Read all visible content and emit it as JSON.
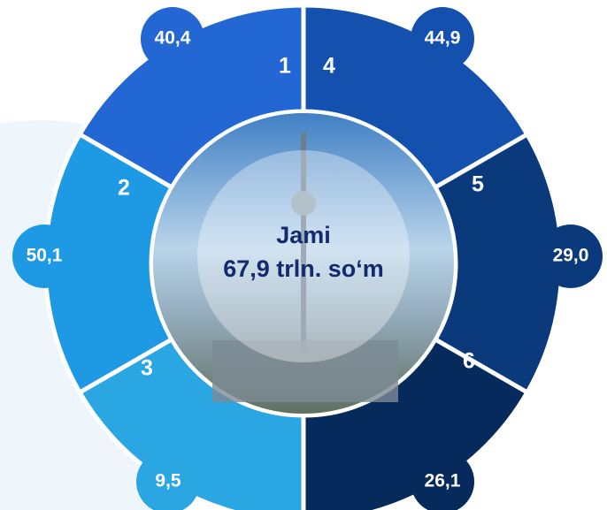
{
  "center": {
    "title": "Jami",
    "total": "67,9 trln. so‘m"
  },
  "segments": [
    {
      "number": "1",
      "value": "40,4"
    },
    {
      "number": "2",
      "value": "50,1"
    },
    {
      "number": "3",
      "value": "9,5"
    },
    {
      "number": "4",
      "value": "44,9"
    },
    {
      "number": "5",
      "value": "29,0"
    },
    {
      "number": "6",
      "value": "26,1"
    }
  ]
}
